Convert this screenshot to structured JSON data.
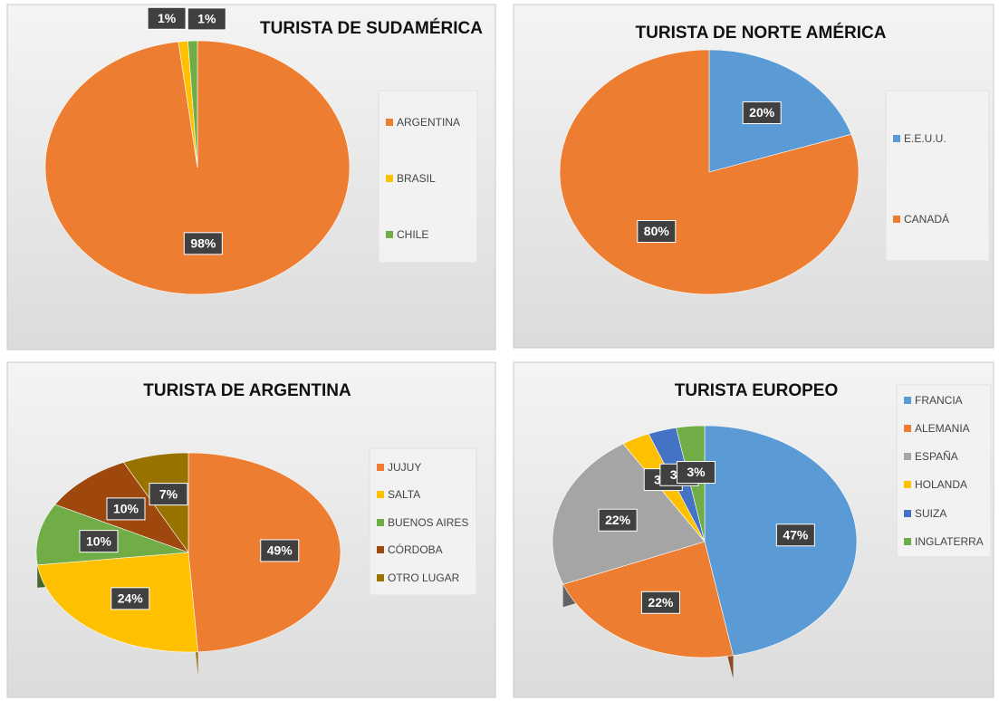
{
  "chart_data": [
    {
      "type": "pie",
      "title": "TURISTA DE SUDAMÉRICA",
      "categories": [
        "ARGENTINA",
        "BRASIL",
        "CHILE"
      ],
      "values": [
        98,
        1,
        1
      ],
      "value_labels": [
        "98%",
        "1%",
        "1%"
      ],
      "colors": [
        "#ed7d31",
        "#ffc000",
        "#70ad47"
      ]
    },
    {
      "type": "pie",
      "title": "TURISTA DE NORTE AMÉRICA",
      "categories": [
        "E.E.U.U.",
        "CANADÁ"
      ],
      "values": [
        20,
        80
      ],
      "value_labels": [
        "20%",
        "80%"
      ],
      "colors": [
        "#5b9bd5",
        "#ed7d31"
      ]
    },
    {
      "type": "pie",
      "title": "TURISTA DE ARGENTINA",
      "categories": [
        "JUJUY",
        "SALTA",
        "BUENOS AIRES",
        "CÓRDOBA",
        "OTRO LUGAR"
      ],
      "values": [
        49,
        24,
        10,
        10,
        7
      ],
      "value_labels": [
        "49%",
        "24%",
        "10%",
        "10%",
        "7%"
      ],
      "colors": [
        "#ed7d31",
        "#ffc000",
        "#70ad47",
        "#9e480e",
        "#997300"
      ]
    },
    {
      "type": "pie",
      "title": "TURISTA EUROPEO",
      "categories": [
        "FRANCIA",
        "ALEMANIA",
        "ESPAÑA",
        "HOLANDA",
        "SUIZA",
        "INGLATERRA"
      ],
      "values": [
        47,
        22,
        22,
        3,
        3,
        3
      ],
      "value_labels": [
        "47%",
        "22%",
        "22%",
        "3%",
        "3%",
        "3%"
      ],
      "colors": [
        "#5b9bd5",
        "#ed7d31",
        "#a5a5a5",
        "#ffc000",
        "#4472c4",
        "#70ad47"
      ]
    }
  ]
}
